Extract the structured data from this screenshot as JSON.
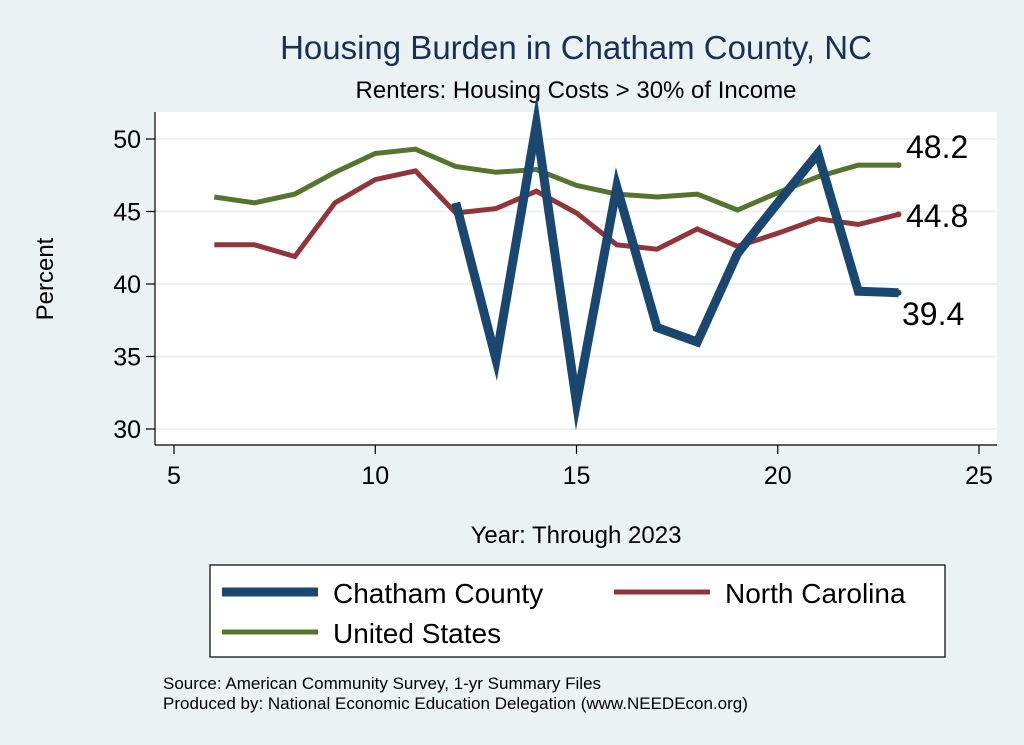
{
  "chart_data": {
    "type": "line",
    "title": "Housing Burden in Chatham County, NC",
    "subtitle": "Renters: Housing Costs > 30% of Income",
    "xlabel": "Year: Through 2023",
    "ylabel": "Percent",
    "xlim": [
      5,
      25
    ],
    "ylim": [
      30,
      51
    ],
    "xticks": [
      5,
      10,
      15,
      20,
      25
    ],
    "yticks": [
      30,
      35,
      40,
      45,
      50
    ],
    "grid": true,
    "series": [
      {
        "name": "Chatham County",
        "color": "#1a476f",
        "x": [
          12,
          13,
          14,
          15,
          16,
          17,
          18,
          19,
          20,
          21,
          22,
          23
        ],
        "values": [
          45.6,
          34.8,
          51.0,
          31.8,
          46.7,
          37.0,
          36.0,
          42.1,
          45.6,
          49.0,
          39.5,
          39.4
        ],
        "end_label": "39.4"
      },
      {
        "name": "North Carolina",
        "color": "#90353b",
        "x": [
          6,
          7,
          8,
          9,
          10,
          11,
          12,
          13,
          14,
          15,
          16,
          17,
          18,
          19,
          20,
          21,
          22,
          23
        ],
        "values": [
          42.7,
          42.7,
          41.9,
          45.6,
          47.2,
          47.8,
          44.9,
          45.2,
          46.4,
          44.9,
          42.7,
          42.4,
          43.8,
          42.6,
          43.5,
          44.5,
          44.1,
          44.8
        ],
        "end_label": "44.8"
      },
      {
        "name": "United States",
        "color": "#55752f",
        "x": [
          6,
          7,
          8,
          9,
          10,
          11,
          12,
          13,
          14,
          15,
          16,
          17,
          18,
          19,
          20,
          21,
          22,
          23
        ],
        "values": [
          46.0,
          45.6,
          46.2,
          47.7,
          49.0,
          49.3,
          48.1,
          47.7,
          47.9,
          46.8,
          46.2,
          46.0,
          46.2,
          45.1,
          46.3,
          47.4,
          48.2,
          48.2
        ],
        "end_label": "48.2"
      }
    ],
    "legend": {
      "position": "bottom",
      "entries": [
        "Chatham County",
        "North Carolina",
        "United States"
      ]
    }
  },
  "footnotes": {
    "source": "Source: American Community Survey, 1-yr Summary Files",
    "produced_by": "Produced by: National Economic Education Delegation (www.NEEDEcon.org)"
  }
}
